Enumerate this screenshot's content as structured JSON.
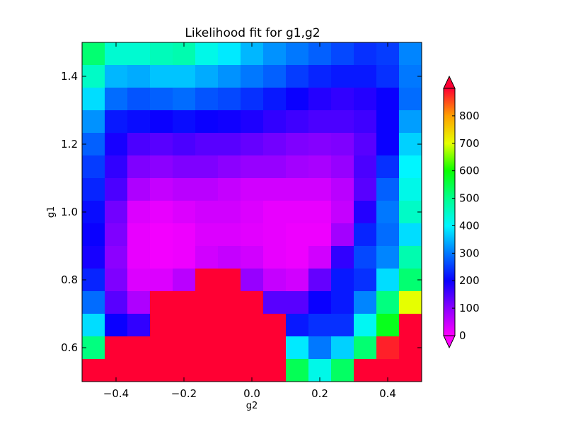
{
  "chart_data": {
    "type": "heatmap",
    "title": "Likelihood fit for g1,g2",
    "xlabel": "g2",
    "ylabel": "g1",
    "xlim": [
      -0.5,
      0.5
    ],
    "ylim": [
      0.5,
      1.5
    ],
    "x_ticks": [
      -0.4,
      -0.2,
      0.0,
      0.2,
      0.4
    ],
    "x_tick_labels": [
      "−0.4",
      "−0.2",
      "0.0",
      "0.2",
      "0.4"
    ],
    "y_ticks": [
      0.6,
      0.8,
      1.0,
      1.2,
      1.4
    ],
    "y_tick_labels": [
      "0.6",
      "0.8",
      "1.0",
      "1.2",
      "1.4"
    ],
    "x_bin_count": 15,
    "y_bin_count": 15,
    "colormap": "gist_rainbow_r",
    "colorbar": {
      "min": 0,
      "max": 900,
      "extend": "both",
      "under_color": "#ff00ff",
      "over_color": "#ff0033",
      "ticks": [
        0,
        100,
        200,
        300,
        400,
        500,
        600,
        700,
        800
      ],
      "tick_labels": [
        "0",
        "100",
        "200",
        "300",
        "400",
        "500",
        "600",
        "700",
        "800"
      ]
    },
    "grid": false,
    "values_rows_top_to_bottom": [
      [
        520,
        440,
        440,
        460,
        470,
        420,
        390,
        350,
        320,
        300,
        280,
        260,
        240,
        250,
        310
      ],
      [
        450,
        350,
        340,
        360,
        360,
        340,
        320,
        300,
        280,
        250,
        230,
        220,
        220,
        240,
        300
      ],
      [
        380,
        290,
        270,
        280,
        290,
        270,
        260,
        240,
        220,
        200,
        180,
        170,
        180,
        200,
        290
      ],
      [
        320,
        220,
        210,
        200,
        210,
        200,
        195,
        185,
        170,
        160,
        150,
        150,
        160,
        200,
        330
      ],
      [
        280,
        190,
        150,
        140,
        150,
        140,
        140,
        130,
        120,
        110,
        105,
        110,
        140,
        200,
        370
      ],
      [
        250,
        170,
        110,
        100,
        110,
        110,
        100,
        90,
        90,
        80,
        75,
        90,
        150,
        240,
        400
      ],
      [
        230,
        150,
        70,
        50,
        60,
        60,
        50,
        40,
        40,
        40,
        40,
        60,
        140,
        280,
        420
      ],
      [
        210,
        120,
        30,
        20,
        30,
        40,
        40,
        30,
        20,
        20,
        20,
        50,
        180,
        300,
        450
      ],
      [
        200,
        110,
        20,
        10,
        15,
        30,
        30,
        25,
        20,
        15,
        15,
        80,
        230,
        290,
        380
      ],
      [
        190,
        100,
        20,
        10,
        15,
        40,
        50,
        40,
        20,
        15,
        40,
        170,
        260,
        310,
        470
      ],
      [
        230,
        110,
        30,
        30,
        60,
        900,
        900,
        90,
        50,
        40,
        130,
        220,
        240,
        380,
        520
      ],
      [
        290,
        140,
        70,
        900,
        900,
        900,
        900,
        900,
        140,
        140,
        200,
        220,
        310,
        510,
        700
      ],
      [
        380,
        200,
        170,
        900,
        900,
        900,
        900,
        900,
        900,
        220,
        240,
        240,
        410,
        580,
        900
      ],
      [
        510,
        900,
        900,
        900,
        900,
        900,
        900,
        900,
        900,
        390,
        300,
        370,
        520,
        880,
        900
      ],
      [
        900,
        900,
        900,
        900,
        900,
        900,
        900,
        900,
        900,
        540,
        420,
        530,
        900,
        900,
        900
      ]
    ]
  }
}
